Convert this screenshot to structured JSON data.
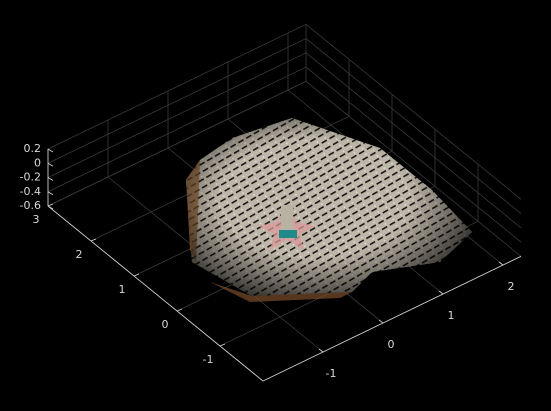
{
  "chart_data": {
    "type": "scatter3d",
    "xlim": [
      -2,
      2.3
    ],
    "ylim": [
      -2,
      3
    ],
    "zlim": [
      -0.6,
      0.2
    ],
    "xticks": [
      -1,
      0,
      1,
      2
    ],
    "yticks": [
      -1,
      0,
      1,
      2,
      3
    ],
    "zticks": [
      -0.6,
      -0.4,
      -0.2,
      0,
      0.2
    ],
    "grid": true
  }
}
